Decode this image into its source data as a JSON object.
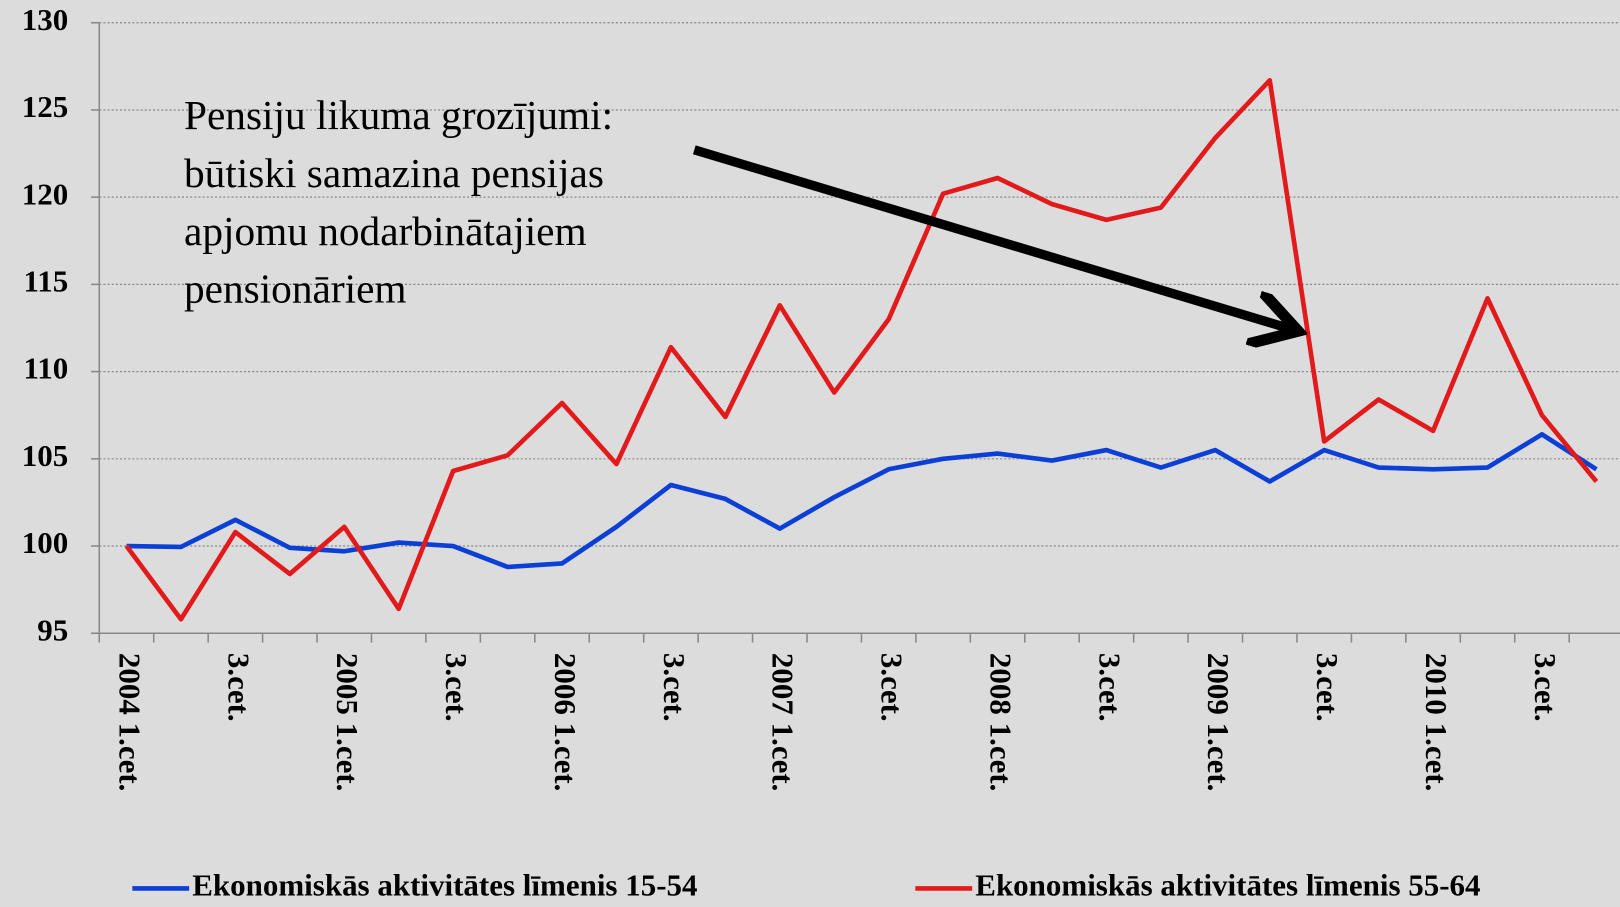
{
  "chart_data": {
    "type": "line",
    "categories": [
      "2004 1.cet.",
      null,
      "3.cet.",
      null,
      "2005 1.cet.",
      null,
      "3.cet.",
      null,
      "2006 1.cet.",
      null,
      "3.cet.",
      null,
      "2007 1.cet.",
      null,
      "3.cet.",
      null,
      "2008 1.cet.",
      null,
      "3.cet.",
      null,
      "2009 1.cet.",
      null,
      "3.cet.",
      null,
      "2010 1.cet.",
      null,
      "3.cet.",
      null
    ],
    "series": [
      {
        "name": "Ekonomiskās aktivitātes līmenis 15-54",
        "color": "#0b3fd6",
        "values": [
          100,
          99.95,
          101.5,
          99.9,
          99.7,
          100.2,
          100,
          98.8,
          99,
          101.1,
          103.5,
          102.7,
          101,
          102.8,
          104.4,
          105,
          105.3,
          104.9,
          105.5,
          104.5,
          105.5,
          103.7,
          105.5,
          104.5,
          104.4,
          104.5,
          106.4,
          104.4
        ]
      },
      {
        "name": "Ekonomiskās aktivitātes līmenis 55-64",
        "color": "#e31a1c",
        "values": [
          100,
          95.8,
          100.8,
          98.4,
          101.1,
          96.4,
          104.3,
          105.2,
          108.2,
          104.7,
          111.4,
          107.4,
          113.8,
          108.8,
          113,
          120.2,
          121.1,
          119.6,
          118.7,
          119.4,
          123.4,
          126.7,
          106,
          108.4,
          106.6,
          114.2,
          107.5,
          103.7
        ]
      }
    ],
    "ylim": [
      95,
      130
    ],
    "yticks": [
      95,
      100,
      105,
      110,
      115,
      120,
      125,
      130
    ],
    "grid": true,
    "annotation": [
      "Pensiju likuma grozījumi:",
      "būtiski samazina pensijas",
      "apjomu nodarbinātajiem",
      "pensionāriem"
    ]
  }
}
